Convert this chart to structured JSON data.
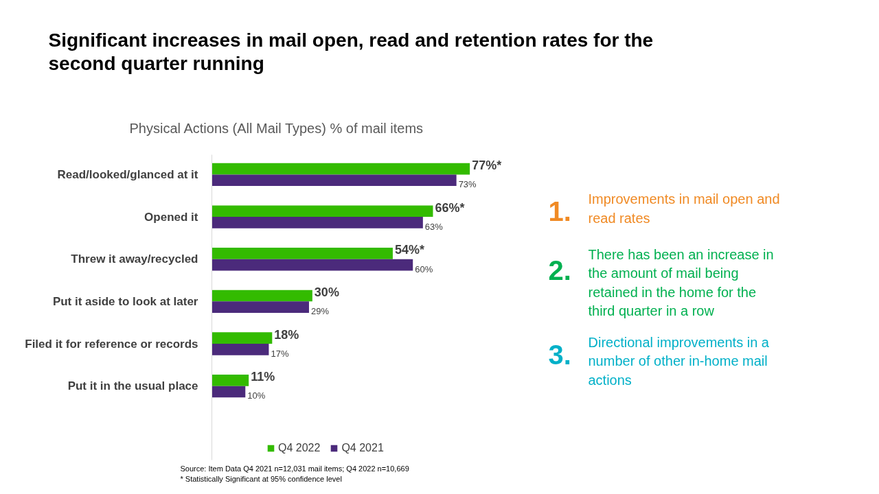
{
  "chart_data": {
    "type": "bar",
    "orientation": "horizontal",
    "title": "Significant increases in mail open, read and retention rates for the second quarter running",
    "subtitle": "Physical Actions (All Mail Types) % of mail items",
    "categories": [
      "Read/looked/glanced at it",
      "Opened it",
      "Threw it away/recycled",
      "Put it aside to look at later",
      "Filed it for reference or records",
      "Put it in the usual place"
    ],
    "series": [
      {
        "name": "Q4 2022",
        "color": "#33bb00",
        "values": [
          77,
          66,
          54,
          30,
          18,
          11
        ],
        "value_labels": [
          "77%*",
          "66%*",
          "54%*",
          "30%",
          "18%",
          "11%"
        ]
      },
      {
        "name": "Q4 2021",
        "color": "#4b2a7b",
        "values": [
          73,
          63,
          60,
          29,
          17,
          10
        ],
        "value_labels": [
          "73%",
          "63%",
          "60%",
          "29%",
          "17%",
          "10%"
        ]
      }
    ],
    "tick_labels": "y",
    "grid": false,
    "legend": "bottom",
    "annotations": [
      "1.",
      "Improvements in mail open and read rates",
      "2.",
      "There has been an increase in the amount  of mail being retained in the home for the third quarter in a row",
      "3.",
      "Directional improvements in a number of other in-home mail actions",
      "Source: Item Data Q4 2021  n=12,031 mail items; Q4 2022 n=10,669",
      "* Statistically Significant at 95% confidence level"
    ]
  }
}
